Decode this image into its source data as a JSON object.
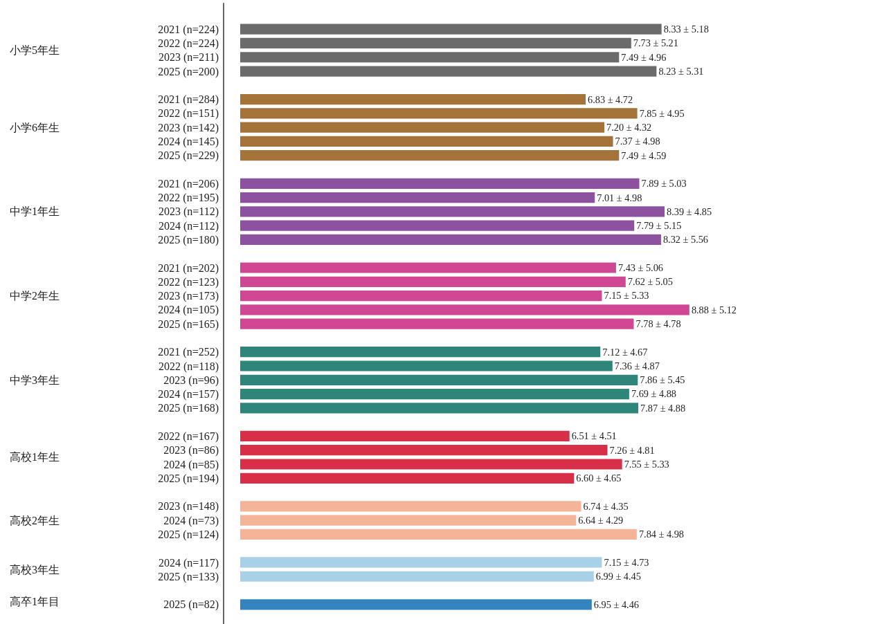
{
  "chart_data": {
    "type": "bar",
    "orientation": "horizontal",
    "tick_labels": "y",
    "grid": false,
    "legend": false,
    "annotations": [
      "小学5年生",
      "小学6年生",
      "中学1年生",
      "中学2年生",
      "中学3年生",
      "高校1年生",
      "高校2年生",
      "高校3年生",
      "高卒1年目"
    ],
    "categories": [
      "2021 (n=224)",
      "2022 (n=224)",
      "2023 (n=211)",
      "2025 (n=200)",
      "2021 (n=284)",
      "2022 (n=151)",
      "2023 (n=142)",
      "2024 (n=145)",
      "2025 (n=229)",
      "2021 (n=206)",
      "2022 (n=195)",
      "2023 (n=112)",
      "2024 (n=112)",
      "2025 (n=180)",
      "2021 (n=202)",
      "2022 (n=123)",
      "2023 (n=173)",
      "2024 (n=105)",
      "2025 (n=165)",
      "2021 (n=252)",
      "2022 (n=118)",
      "2023 (n=96)",
      "2024 (n=157)",
      "2025 (n=168)",
      "2022 (n=167)",
      "2023 (n=86)",
      "2024 (n=85)",
      "2025 (n=194)",
      "2023 (n=148)",
      "2024 (n=73)",
      "2025 (n=124)",
      "2024 (n=117)",
      "2025 (n=133)",
      "2025 (n=82)"
    ],
    "series": [
      {
        "color": "#6b6b6b",
        "values": [
          8.33,
          7.73,
          7.49,
          8.23,
          null,
          null,
          null,
          null,
          null,
          null,
          null,
          null,
          null,
          null,
          null,
          null,
          null,
          null,
          null,
          null,
          null,
          null,
          null,
          null,
          null,
          null,
          null,
          null,
          null,
          null,
          null,
          null,
          null,
          null
        ],
        "value_labels": [
          "8.33 ± 5.18",
          "7.73 ± 5.21",
          "7.49 ± 4.96",
          "8.23 ± 5.31",
          null,
          null,
          null,
          null,
          null,
          null,
          null,
          null,
          null,
          null,
          null,
          null,
          null,
          null,
          null,
          null,
          null,
          null,
          null,
          null,
          null,
          null,
          null,
          null,
          null,
          null,
          null,
          null,
          null,
          null
        ]
      },
      {
        "color": "#a3733a",
        "values": [
          null,
          null,
          null,
          null,
          6.83,
          7.85,
          7.2,
          7.37,
          7.49,
          null,
          null,
          null,
          null,
          null,
          null,
          null,
          null,
          null,
          null,
          null,
          null,
          null,
          null,
          null,
          null,
          null,
          null,
          null,
          null,
          null,
          null,
          null,
          null,
          null
        ],
        "value_labels": [
          null,
          null,
          null,
          null,
          "6.83 ± 4.72",
          "7.85 ± 4.95",
          "7.20 ± 4.32",
          "7.37 ± 4.98",
          "7.49 ± 4.59",
          null,
          null,
          null,
          null,
          null,
          null,
          null,
          null,
          null,
          null,
          null,
          null,
          null,
          null,
          null,
          null,
          null,
          null,
          null,
          null,
          null,
          null,
          null,
          null,
          null
        ]
      },
      {
        "color": "#8c52a0",
        "values": [
          null,
          null,
          null,
          null,
          null,
          null,
          null,
          null,
          null,
          7.89,
          7.01,
          8.39,
          7.79,
          8.32,
          null,
          null,
          null,
          null,
          null,
          null,
          null,
          null,
          null,
          null,
          null,
          null,
          null,
          null,
          null,
          null,
          null,
          null,
          null,
          null
        ],
        "value_labels": [
          null,
          null,
          null,
          null,
          null,
          null,
          null,
          null,
          null,
          "7.89 ± 5.03",
          "7.01 ± 4.98",
          "8.39 ± 4.85",
          "7.79 ± 5.15",
          "8.32 ± 5.56",
          null,
          null,
          null,
          null,
          null,
          null,
          null,
          null,
          null,
          null,
          null,
          null,
          null,
          null,
          null,
          null,
          null,
          null,
          null,
          null
        ]
      },
      {
        "color": "#d04894",
        "values": [
          null,
          null,
          null,
          null,
          null,
          null,
          null,
          null,
          null,
          null,
          null,
          null,
          null,
          null,
          7.43,
          7.62,
          7.15,
          8.88,
          7.78,
          null,
          null,
          null,
          null,
          null,
          null,
          null,
          null,
          null,
          null,
          null,
          null,
          null,
          null,
          null
        ],
        "value_labels": [
          null,
          null,
          null,
          null,
          null,
          null,
          null,
          null,
          null,
          null,
          null,
          null,
          null,
          null,
          "7.43 ± 5.06",
          "7.62 ± 5.05",
          "7.15 ± 5.33",
          "8.88 ± 5.12",
          "7.78 ± 4.78",
          null,
          null,
          null,
          null,
          null,
          null,
          null,
          null,
          null,
          null,
          null,
          null,
          null,
          null,
          null
        ]
      },
      {
        "color": "#2e867a",
        "values": [
          null,
          null,
          null,
          null,
          null,
          null,
          null,
          null,
          null,
          null,
          null,
          null,
          null,
          null,
          null,
          null,
          null,
          null,
          null,
          7.12,
          7.36,
          7.86,
          7.69,
          7.87,
          null,
          null,
          null,
          null,
          null,
          null,
          null,
          null,
          null,
          null
        ],
        "value_labels": [
          null,
          null,
          null,
          null,
          null,
          null,
          null,
          null,
          null,
          null,
          null,
          null,
          null,
          null,
          null,
          null,
          null,
          null,
          null,
          "7.12 ± 4.67",
          "7.36 ± 4.87",
          "7.86 ± 5.45",
          "7.69 ± 4.88",
          "7.87 ± 4.88",
          null,
          null,
          null,
          null,
          null,
          null,
          null,
          null,
          null,
          null
        ]
      },
      {
        "color": "#d62f47",
        "values": [
          null,
          null,
          null,
          null,
          null,
          null,
          null,
          null,
          null,
          null,
          null,
          null,
          null,
          null,
          null,
          null,
          null,
          null,
          null,
          null,
          null,
          null,
          null,
          null,
          6.51,
          7.26,
          7.55,
          6.6,
          null,
          null,
          null,
          null,
          null,
          null
        ],
        "value_labels": [
          null,
          null,
          null,
          null,
          null,
          null,
          null,
          null,
          null,
          null,
          null,
          null,
          null,
          null,
          null,
          null,
          null,
          null,
          null,
          null,
          null,
          null,
          null,
          null,
          "6.51 ± 4.51",
          "7.26 ± 4.81",
          "7.55 ± 5.33",
          "6.60 ± 4.65",
          null,
          null,
          null,
          null,
          null,
          null
        ]
      },
      {
        "color": "#f4b497",
        "values": [
          null,
          null,
          null,
          null,
          null,
          null,
          null,
          null,
          null,
          null,
          null,
          null,
          null,
          null,
          null,
          null,
          null,
          null,
          null,
          null,
          null,
          null,
          null,
          null,
          null,
          null,
          null,
          null,
          6.74,
          6.64,
          7.84,
          null,
          null,
          null
        ],
        "value_labels": [
          null,
          null,
          null,
          null,
          null,
          null,
          null,
          null,
          null,
          null,
          null,
          null,
          null,
          null,
          null,
          null,
          null,
          null,
          null,
          null,
          null,
          null,
          null,
          null,
          null,
          null,
          null,
          null,
          "6.74 ± 4.35",
          "6.64 ± 4.29",
          "7.84 ± 4.98",
          null,
          null,
          null
        ]
      },
      {
        "color": "#a8d0e6",
        "values": [
          null,
          null,
          null,
          null,
          null,
          null,
          null,
          null,
          null,
          null,
          null,
          null,
          null,
          null,
          null,
          null,
          null,
          null,
          null,
          null,
          null,
          null,
          null,
          null,
          null,
          null,
          null,
          null,
          null,
          null,
          null,
          7.15,
          6.99,
          null
        ],
        "value_labels": [
          null,
          null,
          null,
          null,
          null,
          null,
          null,
          null,
          null,
          null,
          null,
          null,
          null,
          null,
          null,
          null,
          null,
          null,
          null,
          null,
          null,
          null,
          null,
          null,
          null,
          null,
          null,
          null,
          null,
          null,
          null,
          "7.15 ± 4.73",
          "6.99 ± 4.45",
          null
        ]
      },
      {
        "color": "#3283c0",
        "values": [
          null,
          null,
          null,
          null,
          null,
          null,
          null,
          null,
          null,
          null,
          null,
          null,
          null,
          null,
          null,
          null,
          null,
          null,
          null,
          null,
          null,
          null,
          null,
          null,
          null,
          null,
          null,
          null,
          null,
          null,
          null,
          null,
          null,
          6.95
        ],
        "value_labels": [
          null,
          null,
          null,
          null,
          null,
          null,
          null,
          null,
          null,
          null,
          null,
          null,
          null,
          null,
          null,
          null,
          null,
          null,
          null,
          null,
          null,
          null,
          null,
          null,
          null,
          null,
          null,
          null,
          null,
          null,
          null,
          null,
          null,
          "6.95 ± 4.46"
        ]
      }
    ]
  }
}
